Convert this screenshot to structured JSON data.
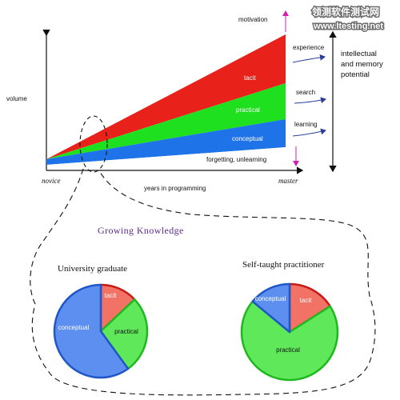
{
  "watermark": {
    "cn": "领测软件测试网",
    "url": "www.ltesting.net"
  },
  "chart": {
    "y_label": "volume",
    "x_label": "years in programming",
    "x_start": "novice",
    "x_end": "master",
    "bands": {
      "tacit": "tacit",
      "practical": "practical",
      "conceptual": "conceptual",
      "forgetting": "forgetting, unlearning"
    },
    "motivation": "motivation",
    "inputs": {
      "experience": "experience",
      "search": "search",
      "learning": "learning"
    },
    "side_note_line1": "intellectual",
    "side_note_line2": "and memory",
    "side_note_line3": "potential"
  },
  "growing_title": "Growing Knowledge",
  "colors": {
    "tacit": "#e8221a",
    "practical": "#1fe01f",
    "conceptual": "#1f73e8",
    "title": "#5b2c8a",
    "motivation_arrow": "#d21fb0",
    "input_arrow": "#2b3e9a"
  },
  "chart_data": [
    {
      "type": "pie",
      "title": "University graduate",
      "labels": [
        "tacit",
        "practical",
        "conceptual"
      ],
      "values": [
        13,
        27,
        60
      ],
      "colors": [
        "#f27266",
        "#5fe85a",
        "#5d8ff0"
      ]
    },
    {
      "type": "pie",
      "title": "Self-taught practitioner",
      "labels": [
        "tacit",
        "practical",
        "conceptual"
      ],
      "values": [
        16,
        70,
        14
      ],
      "colors": [
        "#f27266",
        "#5fe85a",
        "#5d8ff0"
      ]
    }
  ]
}
